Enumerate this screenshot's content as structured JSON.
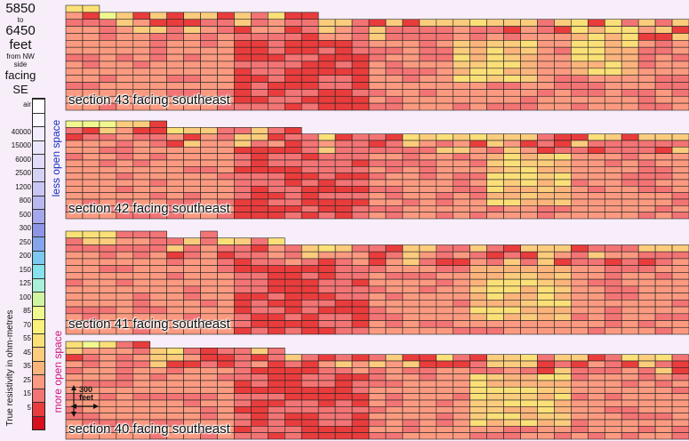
{
  "header": {
    "range_from": "5850",
    "to_word": "to",
    "range_to": "6450",
    "unit": "feet",
    "from_side": "from NW side",
    "facing_word": "facing",
    "facing_dir": "SE"
  },
  "legend": {
    "axis_title": "True resistivity in ohm-metres",
    "less_open": "less open space",
    "more_open": "more open space",
    "entries": [
      {
        "label": "air",
        "color": "#ffffff"
      },
      {
        "label": "",
        "color": "#fbf6ff"
      },
      {
        "label": "40000",
        "color": "#f2ecfd"
      },
      {
        "label": "15000",
        "color": "#ebe6fb"
      },
      {
        "label": "6000",
        "color": "#e1dcf8"
      },
      {
        "label": "2500",
        "color": "#d6d2f5"
      },
      {
        "label": "1200",
        "color": "#c9c6f3"
      },
      {
        "label": "800",
        "color": "#b9b8f0"
      },
      {
        "label": "500",
        "color": "#a6a6ec"
      },
      {
        "label": "300",
        "color": "#8f95e6"
      },
      {
        "label": "250",
        "color": "#84a4ec"
      },
      {
        "label": "200",
        "color": "#7cc8f0"
      },
      {
        "label": "150",
        "color": "#86e2ec"
      },
      {
        "label": "125",
        "color": "#a8f0d8"
      },
      {
        "label": "100",
        "color": "#d0f5a0"
      },
      {
        "label": "85",
        "color": "#f0f890"
      },
      {
        "label": "70",
        "color": "#fbf07a"
      },
      {
        "label": "55",
        "color": "#fbe078"
      },
      {
        "label": "45",
        "color": "#fbcc7c"
      },
      {
        "label": "35",
        "color": "#fbb47c"
      },
      {
        "label": "25",
        "color": "#fb9a80"
      },
      {
        "label": "15",
        "color": "#f37474"
      },
      {
        "label": "5",
        "color": "#e93c3c"
      },
      {
        "label": "",
        "color": "#d70e1e"
      }
    ]
  },
  "scale_bar": {
    "label_line1": "300",
    "label_line2": "feet"
  },
  "chart_data": {
    "type": "heatmap",
    "title": "",
    "sections": [
      {
        "label": "section 43 facing southeast",
        "top_profile": [
          0,
          0,
          1,
          1,
          1,
          1,
          1,
          1,
          1,
          1,
          1,
          1,
          1,
          1,
          1,
          2,
          2,
          2,
          2,
          2,
          2,
          2,
          2,
          2,
          2,
          2,
          2,
          2,
          2,
          2,
          2,
          2,
          2,
          2,
          2,
          2,
          2
        ],
        "highlights": [
          [
            2,
            23,
            5,
            6,
            10
          ],
          [
            3,
            24,
            4,
            10,
            16
          ],
          [
            4,
            28,
            3,
            14,
            18
          ],
          [
            4,
            30,
            4,
            4,
            11
          ]
        ]
      },
      {
        "label": "section 42 facing southeast",
        "top_profile": [
          0,
          0,
          0,
          0,
          0,
          0,
          1,
          1,
          1,
          1,
          1,
          1,
          1,
          1,
          2,
          2,
          2,
          2,
          2,
          2,
          2,
          2,
          2,
          2,
          2,
          2,
          2,
          2,
          2,
          2,
          2,
          2,
          2,
          2,
          2,
          2,
          2
        ],
        "highlights": [
          [
            2,
            25,
            5,
            6,
            12
          ],
          [
            3,
            25,
            4,
            10,
            18
          ],
          [
            4,
            29,
            3,
            14,
            20
          ]
        ]
      },
      {
        "label": "section 41 facing southeast",
        "top_profile": [
          0,
          0,
          0,
          0,
          0,
          0,
          1,
          1,
          0,
          1,
          1,
          1,
          1,
          2,
          2,
          2,
          2,
          2,
          2,
          2,
          2,
          2,
          2,
          2,
          2,
          2,
          2,
          2,
          2,
          2,
          2,
          2,
          2,
          2,
          2,
          2,
          2
        ],
        "highlights": [
          [
            2,
            24,
            6,
            6,
            12
          ],
          [
            3,
            25,
            4,
            10,
            16
          ],
          [
            4,
            27,
            3,
            12,
            20
          ]
        ]
      },
      {
        "label": "section 40 facing southeast",
        "top_profile": [
          0,
          0,
          0,
          0,
          0,
          1,
          1,
          1,
          1,
          1,
          1,
          1,
          1,
          2,
          2,
          2,
          2,
          2,
          2,
          2,
          2,
          2,
          2,
          2,
          2,
          2,
          2,
          2,
          2,
          2,
          2,
          2,
          2,
          2,
          2,
          2,
          2
        ],
        "highlights": [
          [
            2,
            24,
            6,
            6,
            12
          ],
          [
            3,
            25,
            4,
            10,
            18
          ],
          [
            4,
            28,
            3,
            12,
            20
          ]
        ]
      }
    ]
  }
}
